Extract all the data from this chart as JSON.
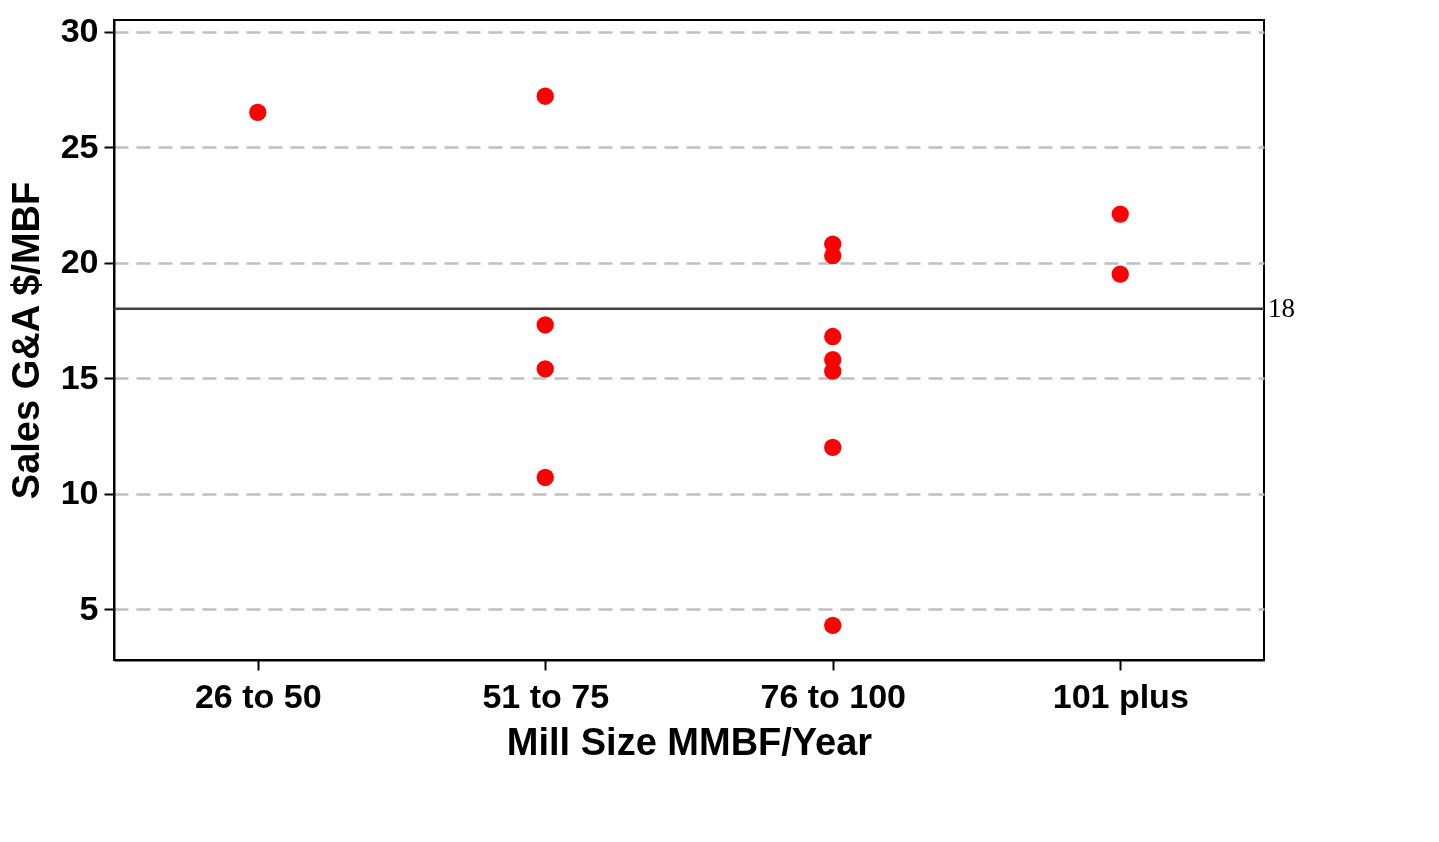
{
  "chart_data": {
    "type": "scatter",
    "xlabel": "Mill Size MMBF/Year",
    "ylabel": "Sales G&A $/MBF",
    "categories": [
      "26 to 50",
      "51 to 75",
      "76 to 100",
      "101 plus"
    ],
    "series": [
      {
        "color": "#ff0000",
        "x": [
          "26 to 50",
          "51 to 75",
          "51 to 75",
          "51 to 75",
          "51 to 75",
          "76 to 100",
          "76 to 100",
          "76 to 100",
          "76 to 100",
          "76 to 100",
          "76 to 100",
          "76 to 100",
          "101 plus",
          "101 plus"
        ],
        "values": [
          26.5,
          27.2,
          17.3,
          15.4,
          10.7,
          20.8,
          20.3,
          16.8,
          15.8,
          15.3,
          12.0,
          4.3,
          22.1,
          19.5
        ]
      }
    ],
    "ylim": [
      2.8,
      30.5
    ],
    "yticks": [
      5,
      10,
      15,
      20,
      25,
      30
    ],
    "ref_lines": [
      {
        "axis": "y",
        "value": 18,
        "label": "18",
        "color": "#404040",
        "line_style": "solid"
      }
    ],
    "grid": "y",
    "marker": "circle"
  }
}
